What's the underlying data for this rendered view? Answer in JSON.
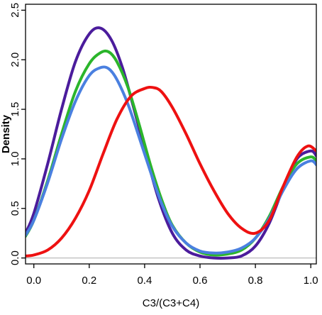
{
  "chart_data": {
    "type": "line",
    "title": "",
    "xlabel": "C3/(C3+C4)",
    "ylabel": "Density",
    "xlim": [
      -0.03,
      1.02
    ],
    "ylim": [
      -0.06,
      2.56
    ],
    "x_ticks": [
      "0.0",
      "0.2",
      "0.4",
      "0.6",
      "0.8",
      "1.0"
    ],
    "y_ticks": [
      "0.0",
      "0.5",
      "1.0",
      "1.5",
      "2.0",
      "2.5"
    ],
    "grid": false,
    "legend": "none",
    "baseline": {
      "y": 0,
      "color": "#bbbbbb"
    },
    "series": [
      {
        "color": "#4b1c9c",
        "x": [
          -0.03,
          0.0,
          0.05,
          0.1,
          0.15,
          0.2,
          0.24,
          0.28,
          0.32,
          0.36,
          0.4,
          0.45,
          0.5,
          0.55,
          0.6,
          0.65,
          0.7,
          0.75,
          0.8,
          0.85,
          0.9,
          0.95,
          1.0,
          1.02
        ],
        "y": [
          0.25,
          0.45,
          0.95,
          1.5,
          1.98,
          2.26,
          2.32,
          2.2,
          1.92,
          1.52,
          1.1,
          0.6,
          0.25,
          0.08,
          0.02,
          0.0,
          0.0,
          0.02,
          0.12,
          0.35,
          0.7,
          1.0,
          1.08,
          1.03
        ]
      },
      {
        "color": "#2bb52b",
        "x": [
          -0.03,
          0.0,
          0.05,
          0.1,
          0.15,
          0.2,
          0.24,
          0.27,
          0.3,
          0.34,
          0.38,
          0.42,
          0.46,
          0.5,
          0.55,
          0.6,
          0.65,
          0.7,
          0.75,
          0.8,
          0.85,
          0.9,
          0.95,
          1.0,
          1.02
        ],
        "y": [
          0.22,
          0.38,
          0.78,
          1.25,
          1.68,
          1.96,
          2.07,
          2.08,
          1.98,
          1.72,
          1.35,
          0.95,
          0.6,
          0.33,
          0.15,
          0.06,
          0.03,
          0.04,
          0.08,
          0.2,
          0.42,
          0.72,
          0.95,
          1.02,
          0.98
        ]
      },
      {
        "color": "#4a80e0",
        "x": [
          -0.03,
          0.0,
          0.05,
          0.1,
          0.15,
          0.2,
          0.24,
          0.27,
          0.3,
          0.34,
          0.38,
          0.42,
          0.46,
          0.5,
          0.55,
          0.6,
          0.65,
          0.7,
          0.75,
          0.8,
          0.85,
          0.9,
          0.95,
          1.0,
          1.02
        ],
        "y": [
          0.23,
          0.38,
          0.76,
          1.2,
          1.58,
          1.84,
          1.92,
          1.91,
          1.8,
          1.55,
          1.22,
          0.88,
          0.56,
          0.32,
          0.15,
          0.07,
          0.05,
          0.06,
          0.1,
          0.2,
          0.4,
          0.68,
          0.9,
          0.98,
          0.94
        ]
      },
      {
        "color": "#ee1111",
        "x": [
          -0.03,
          0.0,
          0.05,
          0.1,
          0.15,
          0.2,
          0.25,
          0.3,
          0.35,
          0.4,
          0.43,
          0.46,
          0.5,
          0.55,
          0.6,
          0.65,
          0.7,
          0.75,
          0.8,
          0.85,
          0.9,
          0.95,
          0.99,
          1.02
        ],
        "y": [
          0.02,
          0.03,
          0.08,
          0.2,
          0.4,
          0.68,
          1.05,
          1.4,
          1.63,
          1.71,
          1.72,
          1.68,
          1.52,
          1.25,
          0.95,
          0.68,
          0.45,
          0.3,
          0.25,
          0.38,
          0.72,
          1.02,
          1.13,
          1.08
        ]
      }
    ]
  }
}
